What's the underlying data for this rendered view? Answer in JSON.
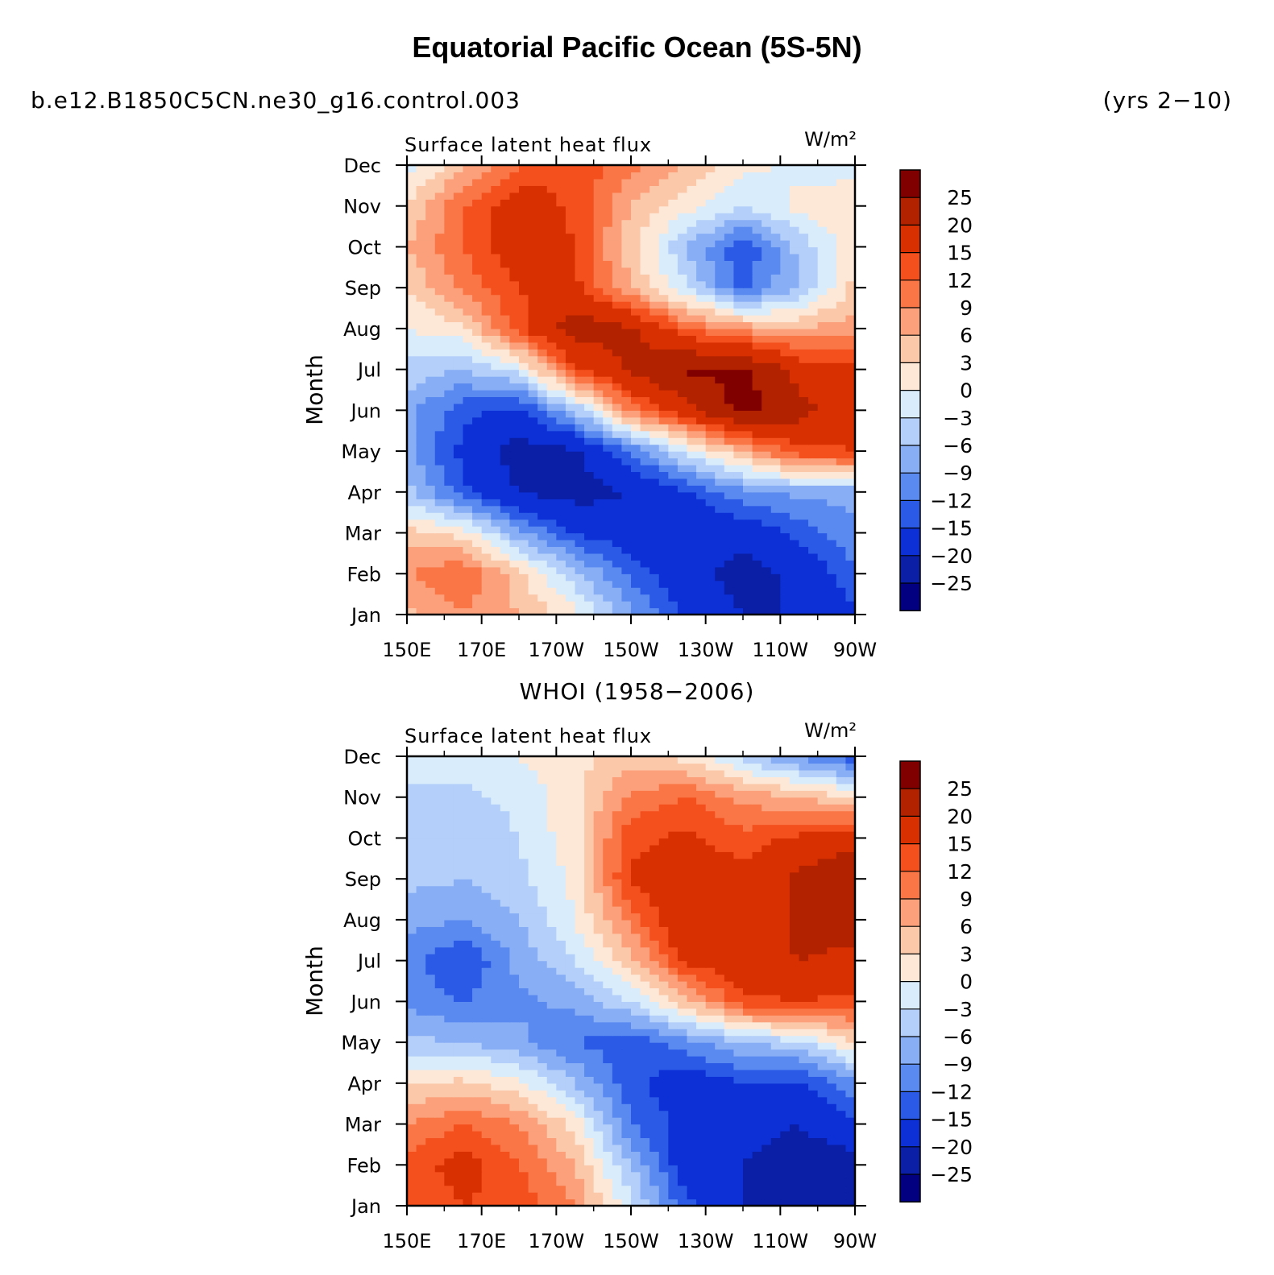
{
  "header": {
    "title": "Equatorial Pacific Ocean (5S-5N)",
    "case_name": "b.e12.B1850C5CN.ne30_g16.control.003",
    "years": "(yrs 2−10)",
    "obs_title": "WHOI (1958−2006)"
  },
  "colorbar": {
    "labels": [
      "25",
      "20",
      "15",
      "12",
      "9",
      "6",
      "3",
      "0",
      "−3",
      "−6",
      "−9",
      "−12",
      "−15",
      "−20",
      "−25"
    ],
    "colors": [
      "#800000",
      "#b22200",
      "#d83000",
      "#f4501e",
      "#fa7646",
      "#fba07a",
      "#fcc8aa",
      "#fde8d8",
      "#d8ecfb",
      "#b4cffa",
      "#88aef5",
      "#5a8af0",
      "#2a5ae6",
      "#0c30d6",
      "#0a1ea6",
      "#020080"
    ]
  },
  "chart_data": [
    {
      "type": "heatmap",
      "panel": "model",
      "left_title": "Surface latent heat flux",
      "units": "W/m²",
      "ylabel": "Month",
      "x": [
        "150E",
        "170E",
        "170W",
        "150W",
        "130W",
        "110W",
        "90W"
      ],
      "y": [
        "Jan",
        "Feb",
        "Mar",
        "Apr",
        "May",
        "Jun",
        "Jul",
        "Aug",
        "Sep",
        "Oct",
        "Nov",
        "Dec"
      ],
      "levels": [
        -25,
        -20,
        -15,
        -12,
        -9,
        -6,
        -3,
        0,
        3,
        6,
        9,
        12,
        15,
        20,
        25
      ],
      "z": [
        [
          5,
          9,
          6,
          1,
          -8,
          -16,
          -20,
          -20,
          -16
        ],
        [
          9,
          12,
          4,
          -5,
          -13,
          -18,
          -22,
          -19,
          -12
        ],
        [
          4,
          2,
          -8,
          -15,
          -18,
          -20,
          -18,
          -14,
          -10
        ],
        [
          -5,
          -14,
          -20,
          -22,
          -20,
          -15,
          -10,
          -8,
          -8
        ],
        [
          -8,
          -16,
          -22,
          -21,
          -12,
          -2,
          6,
          14,
          15
        ],
        [
          -8,
          -14,
          -16,
          -6,
          10,
          18,
          27,
          22,
          16
        ],
        [
          -4,
          -6,
          -2,
          14,
          21,
          26,
          26,
          18,
          16
        ],
        [
          0,
          2,
          14,
          23,
          21,
          12,
          8,
          6,
          8
        ],
        [
          3,
          10,
          15,
          16,
          6,
          -3,
          -13,
          -6,
          4
        ],
        [
          6,
          12,
          18,
          15,
          4,
          -6,
          -15,
          -5,
          2
        ],
        [
          3,
          12,
          18,
          14,
          6,
          1,
          -3,
          1,
          3
        ],
        [
          -1,
          5,
          12,
          15,
          10,
          6,
          1,
          -1,
          -2
        ]
      ]
    },
    {
      "type": "heatmap",
      "panel": "observations",
      "left_title": "Surface latent heat flux",
      "units": "W/m²",
      "ylabel": "Month",
      "x": [
        "150E",
        "170E",
        "170W",
        "150W",
        "130W",
        "110W",
        "90W"
      ],
      "y": [
        "Jan",
        "Feb",
        "Mar",
        "Apr",
        "May",
        "Jun",
        "Jul",
        "Aug",
        "Sep",
        "Oct",
        "Nov",
        "Dec"
      ],
      "levels": [
        -25,
        -20,
        -15,
        -12,
        -9,
        -6,
        -3,
        0,
        3,
        6,
        9,
        12,
        15,
        20,
        25
      ],
      "z": [
        [
          12,
          15,
          14,
          9,
          -2,
          -14,
          -20,
          -22,
          -25
        ],
        [
          13,
          17,
          12,
          6,
          -6,
          -18,
          -20,
          -23,
          -22
        ],
        [
          9,
          12,
          9,
          2,
          -12,
          -16,
          -18,
          -20,
          -16
        ],
        [
          3,
          4,
          1,
          -6,
          -14,
          -18,
          -15,
          -16,
          -10
        ],
        [
          -5,
          -6,
          -8,
          -12,
          -14,
          -10,
          -6,
          -4,
          3
        ],
        [
          -10,
          -12,
          -10,
          -8,
          -3,
          5,
          14,
          15,
          14
        ],
        [
          -11,
          -15,
          -8,
          -3,
          5,
          16,
          18,
          20,
          19
        ],
        [
          -8,
          -9,
          -6,
          0,
          10,
          20,
          16,
          21,
          22
        ],
        [
          -5,
          -6,
          -4,
          1,
          16,
          17,
          17,
          21,
          25
        ],
        [
          -6,
          -6,
          -3,
          2,
          14,
          16,
          13,
          16,
          18
        ],
        [
          -4,
          -4,
          -2,
          2,
          10,
          12,
          8,
          6,
          3
        ],
        [
          -1,
          -1,
          0,
          2,
          4,
          2,
          -4,
          -10,
          -14
        ]
      ]
    }
  ]
}
